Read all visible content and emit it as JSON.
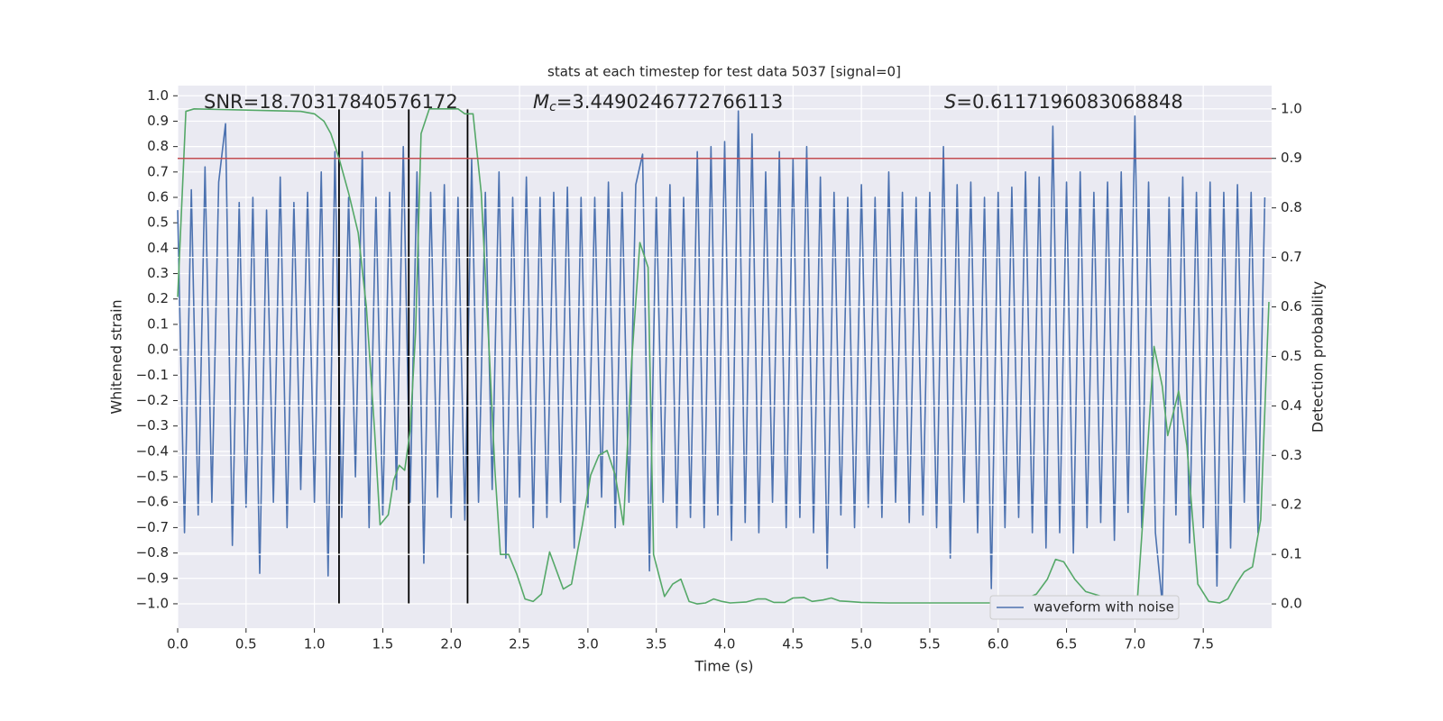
{
  "chart_data": {
    "type": "line",
    "title": "stats at each timestep for test data 5037 [signal=0]",
    "xlabel": "Time (s)",
    "ylabel": "Whitened strain",
    "y2label": "Detection probability",
    "annotations": [
      {
        "text": "SNR=18.70317840576172"
      },
      {
        "symbol": "M",
        "sub": "c",
        "text": "=3.4490246772766113"
      },
      {
        "symbol": "S",
        "text": "=0.6117196083068848"
      }
    ],
    "xlim": [
      0,
      8
    ],
    "ylim": [
      -1.096,
      1.04
    ],
    "y2lim": [
      -0.049,
      1.047
    ],
    "xticks": [
      {
        "value": 0,
        "label": "0.0"
      },
      0.5,
      {
        "value": 1,
        "label": "1.0"
      },
      1.5,
      {
        "value": 2,
        "label": "2.0"
      },
      2.5,
      {
        "value": 3,
        "label": "3.0"
      },
      3.5,
      {
        "value": 4,
        "label": "4.0"
      },
      4.5,
      {
        "value": 5,
        "label": "5.0"
      },
      5.5,
      {
        "value": 6,
        "label": "6.0"
      },
      6.5,
      {
        "value": 7,
        "label": "7.0"
      },
      7.5
    ],
    "yticks": [
      {
        "value": -1,
        "label": "−1.0"
      },
      {
        "value": -0.9,
        "label": "−0.9"
      },
      {
        "value": -0.8,
        "label": "−0.8"
      },
      {
        "value": -0.7,
        "label": "−0.7"
      },
      {
        "value": -0.6,
        "label": "−0.6"
      },
      {
        "value": -0.5,
        "label": "−0.5"
      },
      {
        "value": -0.4,
        "label": "−0.4"
      },
      {
        "value": -0.3,
        "label": "−0.3"
      },
      {
        "value": -0.2,
        "label": "−0.2"
      },
      {
        "value": -0.1,
        "label": "−0.1"
      },
      {
        "value": 0,
        "label": "0.0"
      },
      0.1,
      0.2,
      0.3,
      0.4,
      0.5,
      0.6,
      0.7,
      0.8,
      0.9,
      {
        "value": 1,
        "label": "1.0"
      }
    ],
    "y2ticks": [
      {
        "value": 0,
        "label": "0.0"
      },
      0.1,
      0.2,
      0.3,
      0.4,
      0.5,
      0.6,
      0.7,
      0.8,
      0.9,
      {
        "value": 1,
        "label": "1.0"
      }
    ],
    "grid": true,
    "legend": "lower right",
    "series": [
      {
        "name": "waveform with noise",
        "color": "#4c72b0",
        "axis": "y",
        "x": [
          0,
          0.05,
          0.1,
          0.15,
          0.2,
          0.25,
          0.3,
          0.35,
          0.4,
          0.45,
          0.5,
          0.55,
          0.6,
          0.65,
          0.7,
          0.75,
          0.8,
          0.85,
          0.9,
          0.95,
          1,
          1.05,
          1.1,
          1.15,
          1.2,
          1.25,
          1.3,
          1.35,
          1.4,
          1.45,
          1.5,
          1.55,
          1.6,
          1.65,
          1.7,
          1.75,
          1.8,
          1.85,
          1.9,
          1.95,
          2,
          2.05,
          2.1,
          2.15,
          2.2,
          2.25,
          2.3,
          2.35,
          2.4,
          2.45,
          2.5,
          2.55,
          2.6,
          2.65,
          2.7,
          2.75,
          2.8,
          2.85,
          2.9,
          2.95,
          3,
          3.05,
          3.1,
          3.15,
          3.2,
          3.25,
          3.3,
          3.35,
          3.4,
          3.45,
          3.5,
          3.55,
          3.6,
          3.65,
          3.7,
          3.75,
          3.8,
          3.85,
          3.9,
          3.95,
          4,
          4.05,
          4.1,
          4.15,
          4.2,
          4.25,
          4.3,
          4.35,
          4.4,
          4.45,
          4.5,
          4.55,
          4.6,
          4.65,
          4.7,
          4.75,
          4.8,
          4.85,
          4.9,
          4.95,
          5,
          5.05,
          5.1,
          5.15,
          5.2,
          5.25,
          5.3,
          5.35,
          5.4,
          5.45,
          5.5,
          5.55,
          5.6,
          5.65,
          5.7,
          5.75,
          5.8,
          5.85,
          5.9,
          5.95,
          6,
          6.05,
          6.1,
          6.15,
          6.2,
          6.25,
          6.3,
          6.35,
          6.4,
          6.45,
          6.5,
          6.55,
          6.6,
          6.65,
          6.7,
          6.75,
          6.8,
          6.85,
          6.9,
          6.95,
          7,
          7.05,
          7.1,
          7.15,
          7.2,
          7.25,
          7.3,
          7.35,
          7.4,
          7.45,
          7.5,
          7.55,
          7.6,
          7.65,
          7.7,
          7.75,
          7.8,
          7.85,
          7.9,
          7.95
        ],
        "values": [
          0.55,
          -0.72,
          0.63,
          -0.65,
          0.72,
          -0.6,
          0.66,
          0.89,
          -0.77,
          0.58,
          -0.62,
          0.6,
          -0.88,
          0.55,
          -0.6,
          0.68,
          -0.7,
          0.58,
          -0.55,
          0.62,
          -0.6,
          0.7,
          -0.89,
          0.78,
          -0.66,
          0.6,
          -0.5,
          0.78,
          -0.7,
          0.6,
          -0.65,
          0.62,
          -0.55,
          0.8,
          -0.6,
          0.7,
          -0.84,
          0.62,
          -0.58,
          0.65,
          -0.66,
          0.6,
          -0.67,
          0.75,
          -0.6,
          0.62,
          -0.55,
          0.7,
          -0.82,
          0.6,
          -0.58,
          0.68,
          -0.7,
          0.6,
          -0.66,
          0.62,
          -0.6,
          0.64,
          -0.78,
          0.6,
          -0.62,
          0.6,
          -0.58,
          0.66,
          -0.7,
          0.62,
          -0.6,
          0.65,
          0.77,
          -0.87,
          0.6,
          -0.6,
          0.65,
          -0.7,
          0.6,
          -0.66,
          0.78,
          -0.7,
          0.8,
          -0.65,
          0.82,
          -0.75,
          0.94,
          -0.68,
          0.85,
          -0.72,
          0.7,
          -0.6,
          0.78,
          -0.7,
          0.75,
          -0.66,
          0.8,
          -0.72,
          0.68,
          -0.86,
          0.62,
          -0.65,
          0.6,
          -0.7,
          0.65,
          -0.62,
          0.6,
          -0.66,
          0.7,
          -0.6,
          0.62,
          -0.68,
          0.6,
          -0.65,
          0.62,
          -0.7,
          0.8,
          -0.82,
          0.65,
          -0.6,
          0.66,
          -0.72,
          0.6,
          -0.94,
          0.62,
          -0.7,
          0.64,
          -0.66,
          0.7,
          -0.72,
          0.68,
          -0.78,
          0.88,
          -0.72,
          0.66,
          -0.8,
          0.7,
          -0.7,
          0.62,
          -0.68,
          0.66,
          -0.75,
          0.7,
          -0.64,
          0.92,
          -0.7,
          0.66,
          -0.72,
          -1.0,
          0.6,
          -0.65,
          0.68,
          -0.76,
          0.62,
          -0.7,
          0.66,
          -0.93,
          0.62,
          -0.78,
          0.65,
          -0.6,
          0.62,
          -0.72,
          0.6
        ]
      },
      {
        "color": "#55a868",
        "axis": "y2",
        "x": [
          0,
          0.06,
          0.12,
          0.9,
          1,
          1.07,
          1.12,
          1.18,
          1.25,
          1.32,
          1.38,
          1.44,
          1.48,
          1.54,
          1.58,
          1.62,
          1.66,
          1.7,
          1.74,
          1.78,
          1.84,
          2.05,
          2.1,
          2.16,
          2.22,
          2.28,
          2.32,
          2.36,
          2.42,
          2.48,
          2.54,
          2.6,
          2.66,
          2.72,
          2.82,
          2.88,
          2.96,
          3.02,
          3.08,
          3.14,
          3.2,
          3.26,
          3.32,
          3.38,
          3.44,
          3.48,
          3.56,
          3.62,
          3.68,
          3.74,
          3.8,
          3.86,
          3.92,
          3.98,
          4.04,
          4.16,
          4.24,
          4.3,
          4.36,
          4.44,
          4.5,
          4.58,
          4.64,
          4.72,
          4.78,
          4.84,
          4.9,
          5,
          5.2,
          5.5,
          6,
          6.08,
          6.14,
          6.2,
          6.28,
          6.36,
          6.42,
          6.48,
          6.56,
          6.64,
          6.76,
          6.86,
          6.96,
          7.02,
          7.08,
          7.14,
          7.2,
          7.24,
          7.32,
          7.38,
          7.46,
          7.54,
          7.62,
          7.68,
          7.74,
          7.8,
          7.86,
          7.92,
          7.98
        ],
        "values": [
          0.62,
          0.995,
          1.0,
          0.995,
          0.99,
          0.975,
          0.95,
          0.9,
          0.83,
          0.75,
          0.6,
          0.35,
          0.16,
          0.18,
          0.25,
          0.28,
          0.27,
          0.35,
          0.55,
          0.95,
          1.0,
          1.0,
          0.99,
          0.99,
          0.83,
          0.5,
          0.27,
          0.1,
          0.1,
          0.06,
          0.01,
          0.005,
          0.02,
          0.105,
          0.03,
          0.04,
          0.16,
          0.26,
          0.3,
          0.31,
          0.26,
          0.16,
          0.49,
          0.73,
          0.68,
          0.1,
          0.015,
          0.04,
          0.05,
          0.005,
          0.0,
          0.002,
          0.01,
          0.005,
          0.002,
          0.004,
          0.01,
          0.01,
          0.003,
          0.003,
          0.012,
          0.013,
          0.005,
          0.008,
          0.012,
          0.006,
          0.005,
          0.003,
          0.002,
          0.002,
          0.002,
          0.005,
          0.012,
          0.01,
          0.02,
          0.05,
          0.09,
          0.085,
          0.05,
          0.025,
          0.015,
          0.005,
          0.004,
          0.015,
          0.26,
          0.52,
          0.44,
          0.34,
          0.43,
          0.32,
          0.04,
          0.005,
          0.002,
          0.01,
          0.04,
          0.065,
          0.075,
          0.17,
          0.61
        ]
      }
    ],
    "hline": {
      "y": 0.9,
      "axis": "y2",
      "color": "#c44e52"
    },
    "vlines": {
      "x": [
        1.18,
        1.69,
        2.12
      ],
      "ymin": -1.0,
      "ymax": 0.95,
      "color": "#000000"
    }
  }
}
